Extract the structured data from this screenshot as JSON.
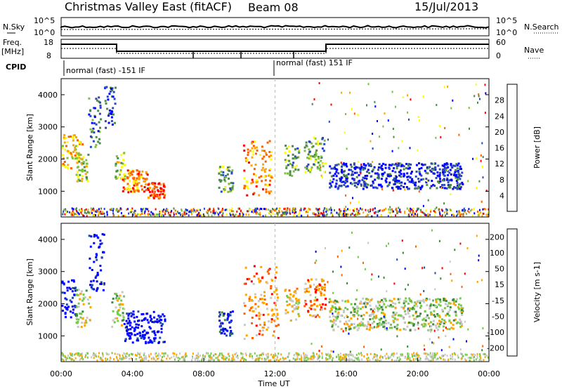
{
  "header": {
    "title": "Christmas Valley East (fitACF)",
    "beam": "Beam 08",
    "date": "15/Jul/2013"
  },
  "params": {
    "nsky_label": "N.Sky",
    "nsky_ticks": [
      "10^5",
      "10^0"
    ],
    "nsearch_label": "N.Search",
    "nsearch_ticks": [
      "10^5",
      "10^0"
    ],
    "freq_label_1": "Freq.",
    "freq_label_2": "[MHz]",
    "freq_ticks": [
      "18",
      "8"
    ],
    "nave_label": "Nave",
    "nave_ticks": [
      "60",
      "0"
    ],
    "cpid_label": "CPID",
    "cpid_1": "normal (fast) -151 IF",
    "cpid_2": "normal (fast) 151 IF"
  },
  "chart_data": [
    {
      "type": "heatmap",
      "quantity": "power",
      "ylabel": "Slant Range [km]",
      "yticks": [
        "4000",
        "3000",
        "2000",
        "1000"
      ],
      "ylim": [
        200,
        4500
      ],
      "xlim_hours": [
        0,
        24
      ],
      "colorbar_label": "Power [dB]",
      "colorbar_ticks": [
        "28",
        "24",
        "20",
        "16",
        "12",
        "8",
        "4"
      ],
      "colorbar_colors": [
        "#0000ff",
        "#2b49b8",
        "#4b8a4b",
        "#7fbf3f",
        "#ffff00",
        "#ffa500",
        "#ff6000",
        "#ff0000"
      ],
      "regions": [
        {
          "t": [
            0.0,
            1.2
          ],
          "r": [
            1700,
            2800
          ],
          "level": 5
        },
        {
          "t": [
            0.8,
            1.5
          ],
          "r": [
            1300,
            2200
          ],
          "level": 4
        },
        {
          "t": [
            1.5,
            2.2
          ],
          "r": [
            2400,
            4100
          ],
          "level": 2
        },
        {
          "t": [
            2.4,
            3.0
          ],
          "r": [
            2800,
            4300
          ],
          "level": 1
        },
        {
          "t": [
            3.0,
            3.6
          ],
          "r": [
            1400,
            2300
          ],
          "level": 4
        },
        {
          "t": [
            3.4,
            4.8
          ],
          "r": [
            1000,
            1700
          ],
          "level": 6
        },
        {
          "t": [
            4.8,
            5.8
          ],
          "r": [
            800,
            1300
          ],
          "level": 7
        },
        {
          "t": [
            8.8,
            9.6
          ],
          "r": [
            1000,
            1800
          ],
          "level": 3
        },
        {
          "t": [
            10.2,
            11.8
          ],
          "r": [
            900,
            2600
          ],
          "level": 6
        },
        {
          "t": [
            12.5,
            13.3
          ],
          "r": [
            1500,
            2500
          ],
          "level": 3
        },
        {
          "t": [
            13.6,
            14.8
          ],
          "r": [
            1600,
            2700
          ],
          "level": 3
        },
        {
          "t": [
            15.0,
            22.5
          ],
          "r": [
            1100,
            1900
          ],
          "level": 1
        }
      ]
    },
    {
      "type": "heatmap",
      "quantity": "velocity",
      "ylabel": "Slant Range [km]",
      "yticks": [
        "4000",
        "3000",
        "2000",
        "1000"
      ],
      "ylim": [
        200,
        4500
      ],
      "xlim_hours": [
        0,
        24
      ],
      "colorbar_label": "Velocity [m s-1]",
      "colorbar_ticks": [
        "200",
        "100",
        "50",
        "15",
        "-15",
        "-50",
        "-100",
        "-200"
      ],
      "colorbar_colors": [
        "#0000ff",
        "#1f4fa0",
        "#3d8a3d",
        "#78c850",
        "#c8c8c8",
        "#ffa500",
        "#ff6000",
        "#ff0000"
      ],
      "regions": [
        {
          "t": [
            0.0,
            0.8
          ],
          "r": [
            1600,
            2800
          ],
          "level": 0
        },
        {
          "t": [
            0.8,
            1.6
          ],
          "r": [
            1300,
            2500
          ],
          "level": 4
        },
        {
          "t": [
            1.5,
            2.4
          ],
          "r": [
            2400,
            4200
          ],
          "level": 0
        },
        {
          "t": [
            2.8,
            3.5
          ],
          "r": [
            1300,
            2400
          ],
          "level": 4
        },
        {
          "t": [
            3.5,
            5.8
          ],
          "r": [
            800,
            1800
          ],
          "level": 0
        },
        {
          "t": [
            8.8,
            9.6
          ],
          "r": [
            1000,
            1800
          ],
          "level": 1
        },
        {
          "t": [
            10.2,
            12.2
          ],
          "r": [
            900,
            3200
          ],
          "level": 6
        },
        {
          "t": [
            12.5,
            13.3
          ],
          "r": [
            1500,
            2500
          ],
          "level": 5
        },
        {
          "t": [
            13.6,
            14.8
          ],
          "r": [
            1600,
            2800
          ],
          "level": 6
        },
        {
          "t": [
            15.0,
            22.5
          ],
          "r": [
            1200,
            2200
          ],
          "level": 4
        }
      ]
    }
  ],
  "xaxis": {
    "label": "Time UT",
    "ticks": [
      "00:00",
      "04:00",
      "08:00",
      "12:00",
      "16:00",
      "20:00",
      "00:00"
    ]
  }
}
